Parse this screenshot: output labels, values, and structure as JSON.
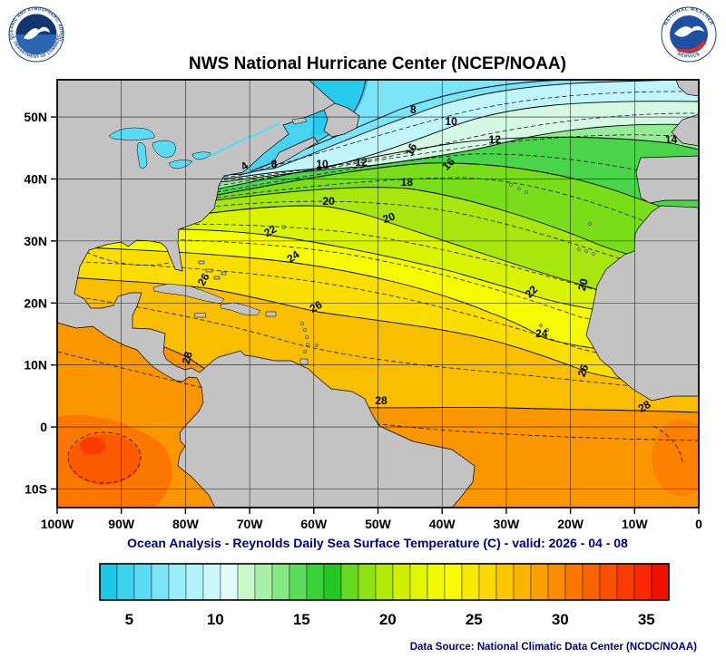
{
  "header": {
    "title": "NWS National Hurricane Center (NCEP/NOAA)"
  },
  "logos": {
    "noaa_ring_top": "NATIONAL OCEANIC AND ATMOSPHERIC ADMINISTRATION",
    "noaa_ring_bottom": "U.S. DEPARTMENT OF COMMERCE",
    "nws_ring_top": "NATIONAL WEATHER",
    "nws_ring_bottom": "SERVICE"
  },
  "map": {
    "lat_ticks": [
      {
        "label": "50N",
        "lat": 50
      },
      {
        "label": "40N",
        "lat": 40
      },
      {
        "label": "30N",
        "lat": 30
      },
      {
        "label": "20N",
        "lat": 20
      },
      {
        "label": "10N",
        "lat": 10
      },
      {
        "label": "0",
        "lat": 0
      },
      {
        "label": "10S",
        "lat": -10
      }
    ],
    "lon_ticks": [
      {
        "label": "100W",
        "lon": 100
      },
      {
        "label": "90W",
        "lon": 90
      },
      {
        "label": "80W",
        "lon": 80
      },
      {
        "label": "70W",
        "lon": 70
      },
      {
        "label": "60W",
        "lon": 60
      },
      {
        "label": "50W",
        "lon": 50
      },
      {
        "label": "40W",
        "lon": 40
      },
      {
        "label": "30W",
        "lon": 30
      },
      {
        "label": "20W",
        "lon": 20
      },
      {
        "label": "10W",
        "lon": 10
      },
      {
        "label": "0",
        "lon": 0
      }
    ],
    "contour_labels": [
      {
        "value": "8",
        "lon": 44.5,
        "lat": 50.6,
        "rot": 0
      },
      {
        "value": "10",
        "lon": 38.6,
        "lat": 48.7,
        "rot": 0
      },
      {
        "value": "12",
        "lon": 31.8,
        "lat": 45.8,
        "rot": 0
      },
      {
        "value": "14",
        "lon": 4.3,
        "lat": 45.8,
        "rot": 0
      },
      {
        "value": "16",
        "lon": 44.3,
        "lat": 44.5,
        "rot": -65
      },
      {
        "value": "16",
        "lon": 38.6,
        "lat": 42.0,
        "rot": -45
      },
      {
        "value": "4",
        "lon": 70.5,
        "lat": 41.6,
        "rot": -35
      },
      {
        "value": "8",
        "lon": 66.2,
        "lat": 41.8,
        "rot": 0
      },
      {
        "value": "10",
        "lon": 58.7,
        "lat": 41.8,
        "rot": 0
      },
      {
        "value": "12",
        "lon": 52.6,
        "lat": 42.1,
        "rot": 0
      },
      {
        "value": "18",
        "lon": 45.5,
        "lat": 38.9,
        "rot": 0
      },
      {
        "value": "20",
        "lon": 57.7,
        "lat": 35.8,
        "rot": 0
      },
      {
        "value": "20",
        "lon": 48.1,
        "lat": 33.2,
        "rot": -20
      },
      {
        "value": "20",
        "lon": 17.5,
        "lat": 22.8,
        "rot": -75
      },
      {
        "value": "22",
        "lon": 66.5,
        "lat": 31.1,
        "rot": -30
      },
      {
        "value": "22",
        "lon": 25.7,
        "lat": 21.4,
        "rot": -45
      },
      {
        "value": "24",
        "lon": 62.9,
        "lat": 27.0,
        "rot": -35
      },
      {
        "value": "24",
        "lon": 24.5,
        "lat": 14.5,
        "rot": 0
      },
      {
        "value": "26",
        "lon": 76.7,
        "lat": 23.5,
        "rot": -60
      },
      {
        "value": "26",
        "lon": 59.4,
        "lat": 18.9,
        "rot": -30
      },
      {
        "value": "26",
        "lon": 17.5,
        "lat": 8.9,
        "rot": -70
      },
      {
        "value": "28",
        "lon": 79.2,
        "lat": 11.0,
        "rot": -75
      },
      {
        "value": "28",
        "lon": 49.5,
        "lat": 3.7,
        "rot": 0
      },
      {
        "value": "28",
        "lon": 8.2,
        "lat": 2.8,
        "rot": -30
      }
    ]
  },
  "caption": "Ocean Analysis - Reynolds Daily Sea Surface Temperature (C) - valid: 2026 - 04 - 08",
  "colorbar": {
    "ticks": [
      5,
      10,
      15,
      20,
      25,
      30,
      35
    ],
    "colors": [
      "#1ec8e8",
      "#3dd2ee",
      "#5cdcf2",
      "#7be4f6",
      "#99ecf8",
      "#b4f2fa",
      "#ccf7fb",
      "#e2fbfd",
      "#c9f7c9",
      "#a8f0a8",
      "#84e884",
      "#5cdc5c",
      "#3ad03a",
      "#23c823",
      "#66d81e",
      "#8ee114",
      "#b2ea0a",
      "#d0f000",
      "#e2f600",
      "#f0fa00",
      "#fafa00",
      "#fae800",
      "#fad800",
      "#fac800",
      "#fab400",
      "#faa000",
      "#fa8c00",
      "#fa7800",
      "#fa6400",
      "#fa5000",
      "#fa3c00",
      "#fa2800",
      "#f01000"
    ]
  },
  "footer": {
    "source": "Data Source: National Climatic Data Center (NCDC/NOAA)"
  },
  "chart_data": {
    "type": "heatmap",
    "title": "NWS National Hurricane Center (NCEP/NOAA)",
    "subtitle": "Ocean Analysis - Reynolds Daily Sea Surface Temperature (C) - valid: 2026 - 04 - 08",
    "variable": "Sea Surface Temperature",
    "units": "C",
    "valid_date": "2026 - 04 - 08",
    "x_axis": {
      "ticks": [
        "100W",
        "90W",
        "80W",
        "70W",
        "60W",
        "50W",
        "40W",
        "30W",
        "20W",
        "10W",
        "0"
      ]
    },
    "y_axis": {
      "ticks": [
        "50N",
        "40N",
        "30N",
        "20N",
        "10N",
        "0",
        "10S"
      ]
    },
    "contour_interval_c": 1,
    "labeled_isotherms_c": [
      4,
      8,
      10,
      12,
      14,
      16,
      18,
      20,
      22,
      24,
      26,
      28
    ],
    "colorbar_ticks_c": [
      5,
      10,
      15,
      20,
      25,
      30,
      35
    ],
    "colorbar_range_c": [
      3,
      36
    ]
  }
}
